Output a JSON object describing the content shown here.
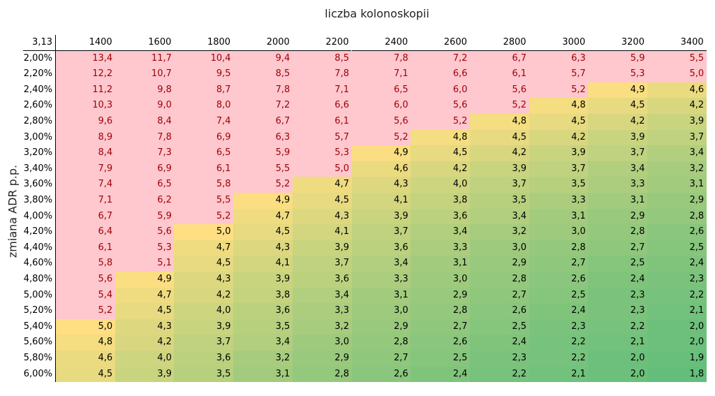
{
  "header": {
    "title": "liczba kolonoskopii"
  },
  "side_label": "zmiana ADR p.p.",
  "table": {
    "corner": "3,13",
    "columns": [
      "1400",
      "1600",
      "1800",
      "2000",
      "2200",
      "2400",
      "2600",
      "2800",
      "3000",
      "3200",
      "3400"
    ],
    "rows": [
      {
        "label": "2,00%",
        "cells": [
          "13,4",
          "11,7",
          "10,4",
          "9,4",
          "8,5",
          "7,8",
          "7,2",
          "6,7",
          "6,3",
          "5,9",
          "5,5"
        ],
        "highlighted": 11
      },
      {
        "label": "2,20%",
        "cells": [
          "12,2",
          "10,7",
          "9,5",
          "8,5",
          "7,8",
          "7,1",
          "6,6",
          "6,1",
          "5,7",
          "5,3",
          "5,0"
        ],
        "highlighted": 11
      },
      {
        "label": "2,40%",
        "cells": [
          "11,2",
          "9,8",
          "8,7",
          "7,8",
          "7,1",
          "6,5",
          "6,0",
          "5,6",
          "5,2",
          "4,9",
          "4,6"
        ],
        "highlighted": 9
      },
      {
        "label": "2,60%",
        "cells": [
          "10,3",
          "9,0",
          "8,0",
          "7,2",
          "6,6",
          "6,0",
          "5,6",
          "5,2",
          "4,8",
          "4,5",
          "4,2"
        ],
        "highlighted": 8
      },
      {
        "label": "2,80%",
        "cells": [
          "9,6",
          "8,4",
          "7,4",
          "6,7",
          "6,1",
          "5,6",
          "5,2",
          "4,8",
          "4,5",
          "4,2",
          "3,9"
        ],
        "highlighted": 7
      },
      {
        "label": "3,00%",
        "cells": [
          "8,9",
          "7,8",
          "6,9",
          "6,3",
          "5,7",
          "5,2",
          "4,8",
          "4,5",
          "4,2",
          "3,9",
          "3,7"
        ],
        "highlighted": 6
      },
      {
        "label": "3,20%",
        "cells": [
          "8,4",
          "7,3",
          "6,5",
          "5,9",
          "5,3",
          "4,9",
          "4,5",
          "4,2",
          "3,9",
          "3,7",
          "3,4"
        ],
        "highlighted": 5
      },
      {
        "label": "3,40%",
        "cells": [
          "7,9",
          "6,9",
          "6,1",
          "5,5",
          "5,0",
          "4,6",
          "4,2",
          "3,9",
          "3,7",
          "3,4",
          "3,2"
        ],
        "highlighted": 5
      },
      {
        "label": "3,60%",
        "cells": [
          "7,4",
          "6,5",
          "5,8",
          "5,2",
          "4,7",
          "4,3",
          "4,0",
          "3,7",
          "3,5",
          "3,3",
          "3,1"
        ],
        "highlighted": 4
      },
      {
        "label": "3,80%",
        "cells": [
          "7,1",
          "6,2",
          "5,5",
          "4,9",
          "4,5",
          "4,1",
          "3,8",
          "3,5",
          "3,3",
          "3,1",
          "2,9"
        ],
        "highlighted": 3
      },
      {
        "label": "4,00%",
        "cells": [
          "6,7",
          "5,9",
          "5,2",
          "4,7",
          "4,3",
          "3,9",
          "3,6",
          "3,4",
          "3,1",
          "2,9",
          "2,8"
        ],
        "highlighted": 3
      },
      {
        "label": "4,20%",
        "cells": [
          "6,4",
          "5,6",
          "5,0",
          "4,5",
          "4,1",
          "3,7",
          "3,4",
          "3,2",
          "3,0",
          "2,8",
          "2,6"
        ],
        "highlighted": 2
      },
      {
        "label": "4,40%",
        "cells": [
          "6,1",
          "5,3",
          "4,7",
          "4,3",
          "3,9",
          "3,6",
          "3,3",
          "3,0",
          "2,8",
          "2,7",
          "2,5"
        ],
        "highlighted": 2
      },
      {
        "label": "4,60%",
        "cells": [
          "5,8",
          "5,1",
          "4,5",
          "4,1",
          "3,7",
          "3,4",
          "3,1",
          "2,9",
          "2,7",
          "2,5",
          "2,4"
        ],
        "highlighted": 2
      },
      {
        "label": "4,80%",
        "cells": [
          "5,6",
          "4,9",
          "4,3",
          "3,9",
          "3,6",
          "3,3",
          "3,0",
          "2,8",
          "2,6",
          "2,4",
          "2,3"
        ],
        "highlighted": 1
      },
      {
        "label": "5,00%",
        "cells": [
          "5,4",
          "4,7",
          "4,2",
          "3,8",
          "3,4",
          "3,1",
          "2,9",
          "2,7",
          "2,5",
          "2,3",
          "2,2"
        ],
        "highlighted": 1
      },
      {
        "label": "5,20%",
        "cells": [
          "5,2",
          "4,5",
          "4,0",
          "3,6",
          "3,3",
          "3,0",
          "2,8",
          "2,6",
          "2,4",
          "2,3",
          "2,1"
        ],
        "highlighted": 1
      },
      {
        "label": "5,40%",
        "cells": [
          "5,0",
          "4,3",
          "3,9",
          "3,5",
          "3,2",
          "2,9",
          "2,7",
          "2,5",
          "2,3",
          "2,2",
          "2,0"
        ],
        "highlighted": 0
      },
      {
        "label": "5,60%",
        "cells": [
          "4,8",
          "4,2",
          "3,7",
          "3,4",
          "3,0",
          "2,8",
          "2,6",
          "2,4",
          "2,2",
          "2,1",
          "2,0"
        ],
        "highlighted": 0
      },
      {
        "label": "5,80%",
        "cells": [
          "4,6",
          "4,0",
          "3,6",
          "3,2",
          "2,9",
          "2,7",
          "2,5",
          "2,3",
          "2,2",
          "2,0",
          "1,9"
        ],
        "highlighted": 0
      },
      {
        "label": "6,00%",
        "cells": [
          "4,5",
          "3,9",
          "3,5",
          "3,1",
          "2,8",
          "2,6",
          "2,4",
          "2,2",
          "2,1",
          "2,0",
          "1,8"
        ],
        "highlighted": 0
      }
    ]
  },
  "colors": {
    "highlight_fill": "#ffc7ce",
    "highlight_text": "#9c0006",
    "scale_high": "#ffdf81",
    "scale_low": "#63be7b",
    "text": "#000000"
  }
}
